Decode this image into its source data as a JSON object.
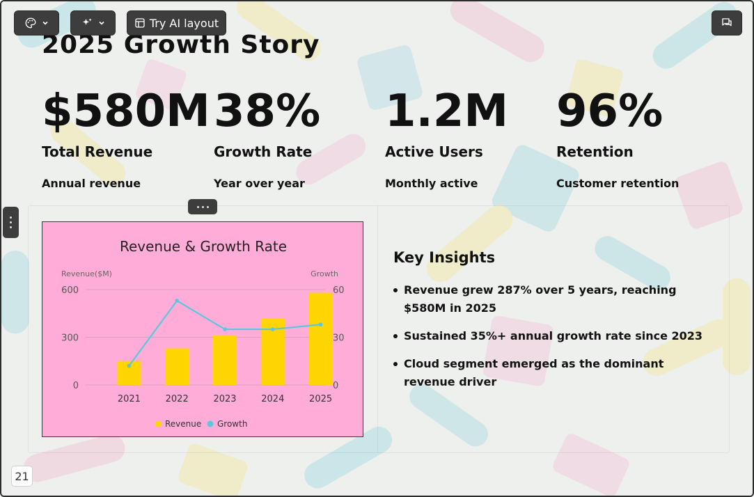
{
  "toolbar": {
    "theme_icon": "palette-icon",
    "magic_icon": "sparkles-icon",
    "ai_layout_label": "Try AI layout",
    "comment_icon": "comment-icon"
  },
  "slide": {
    "title": "2025 Growth Story",
    "page_number": "21",
    "stats": [
      {
        "value": "$580M",
        "label": "Total Revenue",
        "sub": "Annual revenue"
      },
      {
        "value": "38%",
        "label": "Growth Rate",
        "sub": "Year over year"
      },
      {
        "value": "1.2M",
        "label": "Active Users",
        "sub": "Monthly active"
      },
      {
        "value": "96%",
        "label": "Retention",
        "sub": "Customer retention"
      }
    ],
    "insights": {
      "title": "Key Insights",
      "items": [
        "Revenue grew 287% over 5 years, reaching $580M in 2025",
        "Sustained 35%+ annual growth rate since 2023",
        "Cloud segment emerged as the dominant revenue driver"
      ]
    }
  },
  "chart_data": {
    "type": "bar",
    "title": "Revenue & Growth Rate",
    "categories": [
      "2021",
      "2022",
      "2023",
      "2024",
      "2025"
    ],
    "series": [
      {
        "name": "Revenue",
        "type": "bar",
        "axis": "left",
        "values": [
          150,
          230,
          310,
          420,
          580
        ],
        "color": "#ffd500"
      },
      {
        "name": "Growth",
        "type": "line",
        "axis": "right",
        "values": [
          12,
          53,
          35,
          35,
          38
        ],
        "color": "#5bc7dc"
      }
    ],
    "ylabel_left": "Revenue($M)",
    "ylabel_right": "Growth",
    "ylim_left": [
      0,
      600
    ],
    "ylim_right": [
      0,
      60
    ],
    "yticks_left": [
      "0",
      "300",
      "600"
    ],
    "yticks_right": [
      "0",
      "30",
      "60"
    ],
    "grid": true,
    "legend": "bottom-center"
  }
}
